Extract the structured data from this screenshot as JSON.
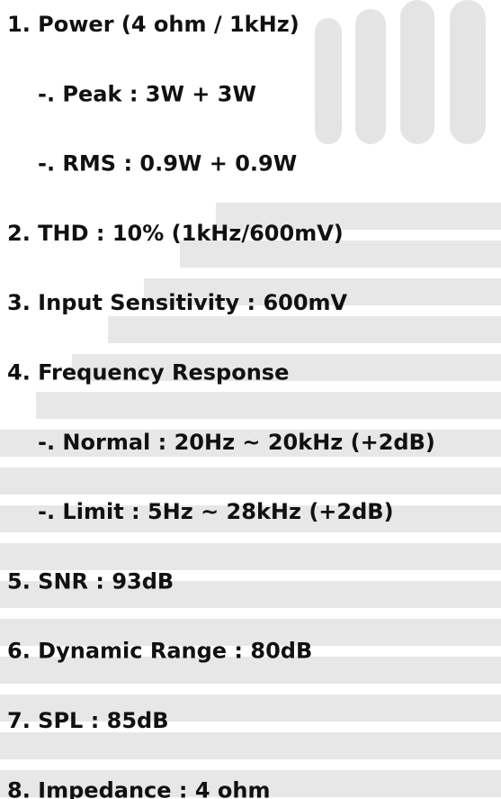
{
  "items": [
    {
      "label": "1.  Power (4 ohm / 1kHz)",
      "sub": [
        "-. Peak : 3W + 3W",
        "-. RMS : 0.9W + 0.9W"
      ]
    },
    {
      "label": "2. THD : 10%  (1kHz/600mV)"
    },
    {
      "label": "3. Input Sensitivity : 600mV"
    },
    {
      "label": "4. Frequency Response",
      "sub": [
        "-. Normal : 20Hz ~ 20kHz (+2dB)",
        "-. Limit : 5Hz ~ 28kHz (+2dB)"
      ]
    },
    {
      "label": "5. SNR : 93dB"
    },
    {
      "label": "6. Dynamic Range : 80dB"
    },
    {
      "label": "7. SPL : 85dB"
    },
    {
      "label": "8. Impedance : 4 ohm"
    }
  ]
}
